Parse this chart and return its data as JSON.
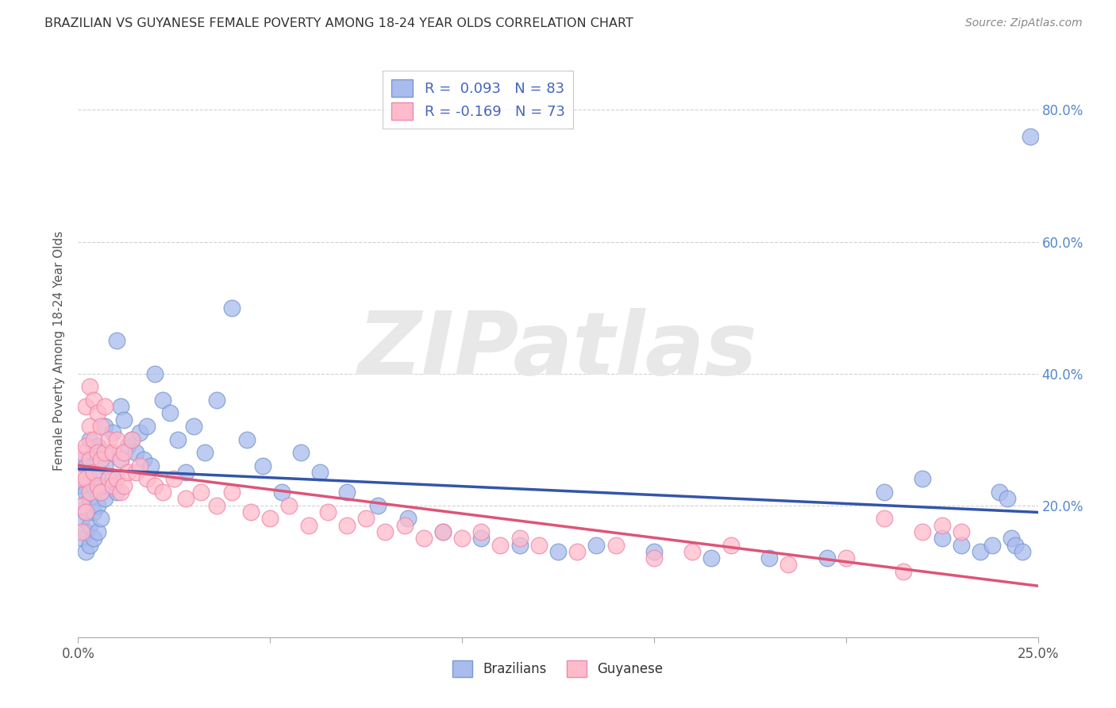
{
  "title": "BRAZILIAN VS GUYANESE FEMALE POVERTY AMONG 18-24 YEAR OLDS CORRELATION CHART",
  "source": "Source: ZipAtlas.com",
  "ylabel": "Female Poverty Among 18-24 Year Olds",
  "xlim": [
    0.0,
    0.25
  ],
  "ylim": [
    0.0,
    0.87
  ],
  "xtick_positions": [
    0.0,
    0.05,
    0.1,
    0.15,
    0.2,
    0.25
  ],
  "xtick_labels_show": {
    "0.0": "0.0%",
    "0.25": "25.0%"
  },
  "yticks_right": [
    0.2,
    0.4,
    0.6,
    0.8
  ],
  "background_color": "#ffffff",
  "grid_color": "#cccccc",
  "title_color": "#333333",
  "source_color": "#888888",
  "brazil_face": "#aabbee",
  "brazil_edge": "#7799cc",
  "guyana_face": "#ffbbcc",
  "guyana_edge": "#ee88aa",
  "brazil_R": 0.093,
  "brazil_N": 83,
  "guyana_R": -0.169,
  "guyana_N": 73,
  "brazil_line_color": "#3355aa",
  "guyana_line_color": "#dd5577",
  "watermark_text": "ZIPatlas",
  "watermark_color": "#e8e8e8",
  "brazil_x": [
    0.001,
    0.001,
    0.001,
    0.001,
    0.001,
    0.002,
    0.002,
    0.002,
    0.002,
    0.002,
    0.003,
    0.003,
    0.003,
    0.003,
    0.003,
    0.004,
    0.004,
    0.004,
    0.004,
    0.005,
    0.005,
    0.005,
    0.005,
    0.006,
    0.006,
    0.006,
    0.007,
    0.007,
    0.007,
    0.008,
    0.008,
    0.009,
    0.009,
    0.01,
    0.01,
    0.011,
    0.011,
    0.012,
    0.013,
    0.014,
    0.015,
    0.016,
    0.017,
    0.018,
    0.019,
    0.02,
    0.022,
    0.024,
    0.026,
    0.028,
    0.03,
    0.033,
    0.036,
    0.04,
    0.044,
    0.048,
    0.053,
    0.058,
    0.063,
    0.07,
    0.078,
    0.086,
    0.095,
    0.105,
    0.115,
    0.125,
    0.135,
    0.15,
    0.165,
    0.18,
    0.195,
    0.21,
    0.22,
    0.225,
    0.23,
    0.235,
    0.238,
    0.24,
    0.242,
    0.243,
    0.244,
    0.246,
    0.248
  ],
  "brazil_y": [
    0.27,
    0.23,
    0.2,
    0.18,
    0.15,
    0.26,
    0.22,
    0.19,
    0.16,
    0.13,
    0.3,
    0.25,
    0.21,
    0.17,
    0.14,
    0.28,
    0.23,
    0.19,
    0.15,
    0.29,
    0.24,
    0.2,
    0.16,
    0.27,
    0.22,
    0.18,
    0.32,
    0.26,
    0.21,
    0.28,
    0.23,
    0.31,
    0.24,
    0.45,
    0.22,
    0.35,
    0.27,
    0.33,
    0.29,
    0.3,
    0.28,
    0.31,
    0.27,
    0.32,
    0.26,
    0.4,
    0.36,
    0.34,
    0.3,
    0.25,
    0.32,
    0.28,
    0.36,
    0.5,
    0.3,
    0.26,
    0.22,
    0.28,
    0.25,
    0.22,
    0.2,
    0.18,
    0.16,
    0.15,
    0.14,
    0.13,
    0.14,
    0.13,
    0.12,
    0.12,
    0.12,
    0.22,
    0.24,
    0.15,
    0.14,
    0.13,
    0.14,
    0.22,
    0.21,
    0.15,
    0.14,
    0.13,
    0.76
  ],
  "guyana_x": [
    0.001,
    0.001,
    0.001,
    0.001,
    0.002,
    0.002,
    0.002,
    0.002,
    0.003,
    0.003,
    0.003,
    0.003,
    0.004,
    0.004,
    0.004,
    0.005,
    0.005,
    0.005,
    0.006,
    0.006,
    0.006,
    0.007,
    0.007,
    0.008,
    0.008,
    0.009,
    0.009,
    0.01,
    0.01,
    0.011,
    0.011,
    0.012,
    0.012,
    0.013,
    0.014,
    0.015,
    0.016,
    0.018,
    0.02,
    0.022,
    0.025,
    0.028,
    0.032,
    0.036,
    0.04,
    0.045,
    0.05,
    0.055,
    0.06,
    0.065,
    0.07,
    0.075,
    0.08,
    0.085,
    0.09,
    0.095,
    0.1,
    0.105,
    0.11,
    0.115,
    0.12,
    0.13,
    0.14,
    0.15,
    0.16,
    0.17,
    0.185,
    0.2,
    0.21,
    0.215,
    0.22,
    0.225,
    0.23
  ],
  "guyana_y": [
    0.28,
    0.24,
    0.2,
    0.16,
    0.35,
    0.29,
    0.24,
    0.19,
    0.38,
    0.32,
    0.27,
    0.22,
    0.36,
    0.3,
    0.25,
    0.34,
    0.28,
    0.23,
    0.32,
    0.27,
    0.22,
    0.35,
    0.28,
    0.3,
    0.24,
    0.28,
    0.23,
    0.3,
    0.24,
    0.27,
    0.22,
    0.28,
    0.23,
    0.25,
    0.3,
    0.25,
    0.26,
    0.24,
    0.23,
    0.22,
    0.24,
    0.21,
    0.22,
    0.2,
    0.22,
    0.19,
    0.18,
    0.2,
    0.17,
    0.19,
    0.17,
    0.18,
    0.16,
    0.17,
    0.15,
    0.16,
    0.15,
    0.16,
    0.14,
    0.15,
    0.14,
    0.13,
    0.14,
    0.12,
    0.13,
    0.14,
    0.11,
    0.12,
    0.18,
    0.1,
    0.16,
    0.17,
    0.16
  ]
}
